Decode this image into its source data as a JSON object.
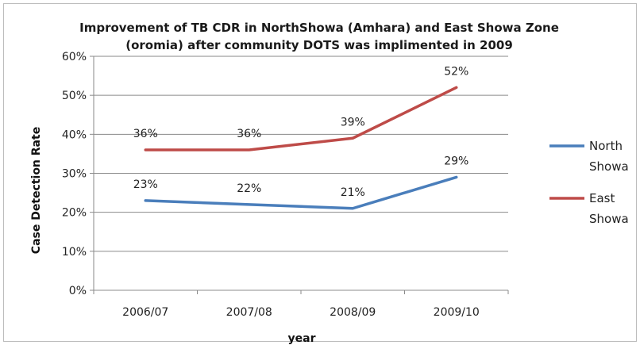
{
  "chart_data": {
    "type": "line",
    "title": "Improvement of TB CDR in NorthShowa (Amhara) and East Showa Zone (oromia) after community DOTS was implimented in 2009",
    "title_lines": [
      "Improvement of TB CDR in NorthShowa (Amhara) and East Showa Zone",
      "(oromia) after community DOTS was implimented in 2009"
    ],
    "xlabel": "year",
    "ylabel": "Case Detection Rate",
    "categories": [
      "2006/07",
      "2007/08",
      "2008/09",
      "2009/10"
    ],
    "y_ticks": [
      "0%",
      "10%",
      "20%",
      "30%",
      "40%",
      "50%",
      "60%"
    ],
    "ylim": [
      0,
      60
    ],
    "grid": true,
    "legend_position": "right",
    "series": [
      {
        "name": "North Showa",
        "legend_lines": [
          "North",
          "Showa"
        ],
        "color": "#4a7ebb",
        "values": [
          23,
          22,
          21,
          29
        ],
        "labels": [
          "23%",
          "22%",
          "21%",
          "29%"
        ]
      },
      {
        "name": "East Showa",
        "legend_lines": [
          "East",
          "Showa"
        ],
        "color": "#be4b48",
        "values": [
          36,
          36,
          39,
          52
        ],
        "labels": [
          "36%",
          "36%",
          "39%",
          "52%"
        ]
      }
    ]
  }
}
